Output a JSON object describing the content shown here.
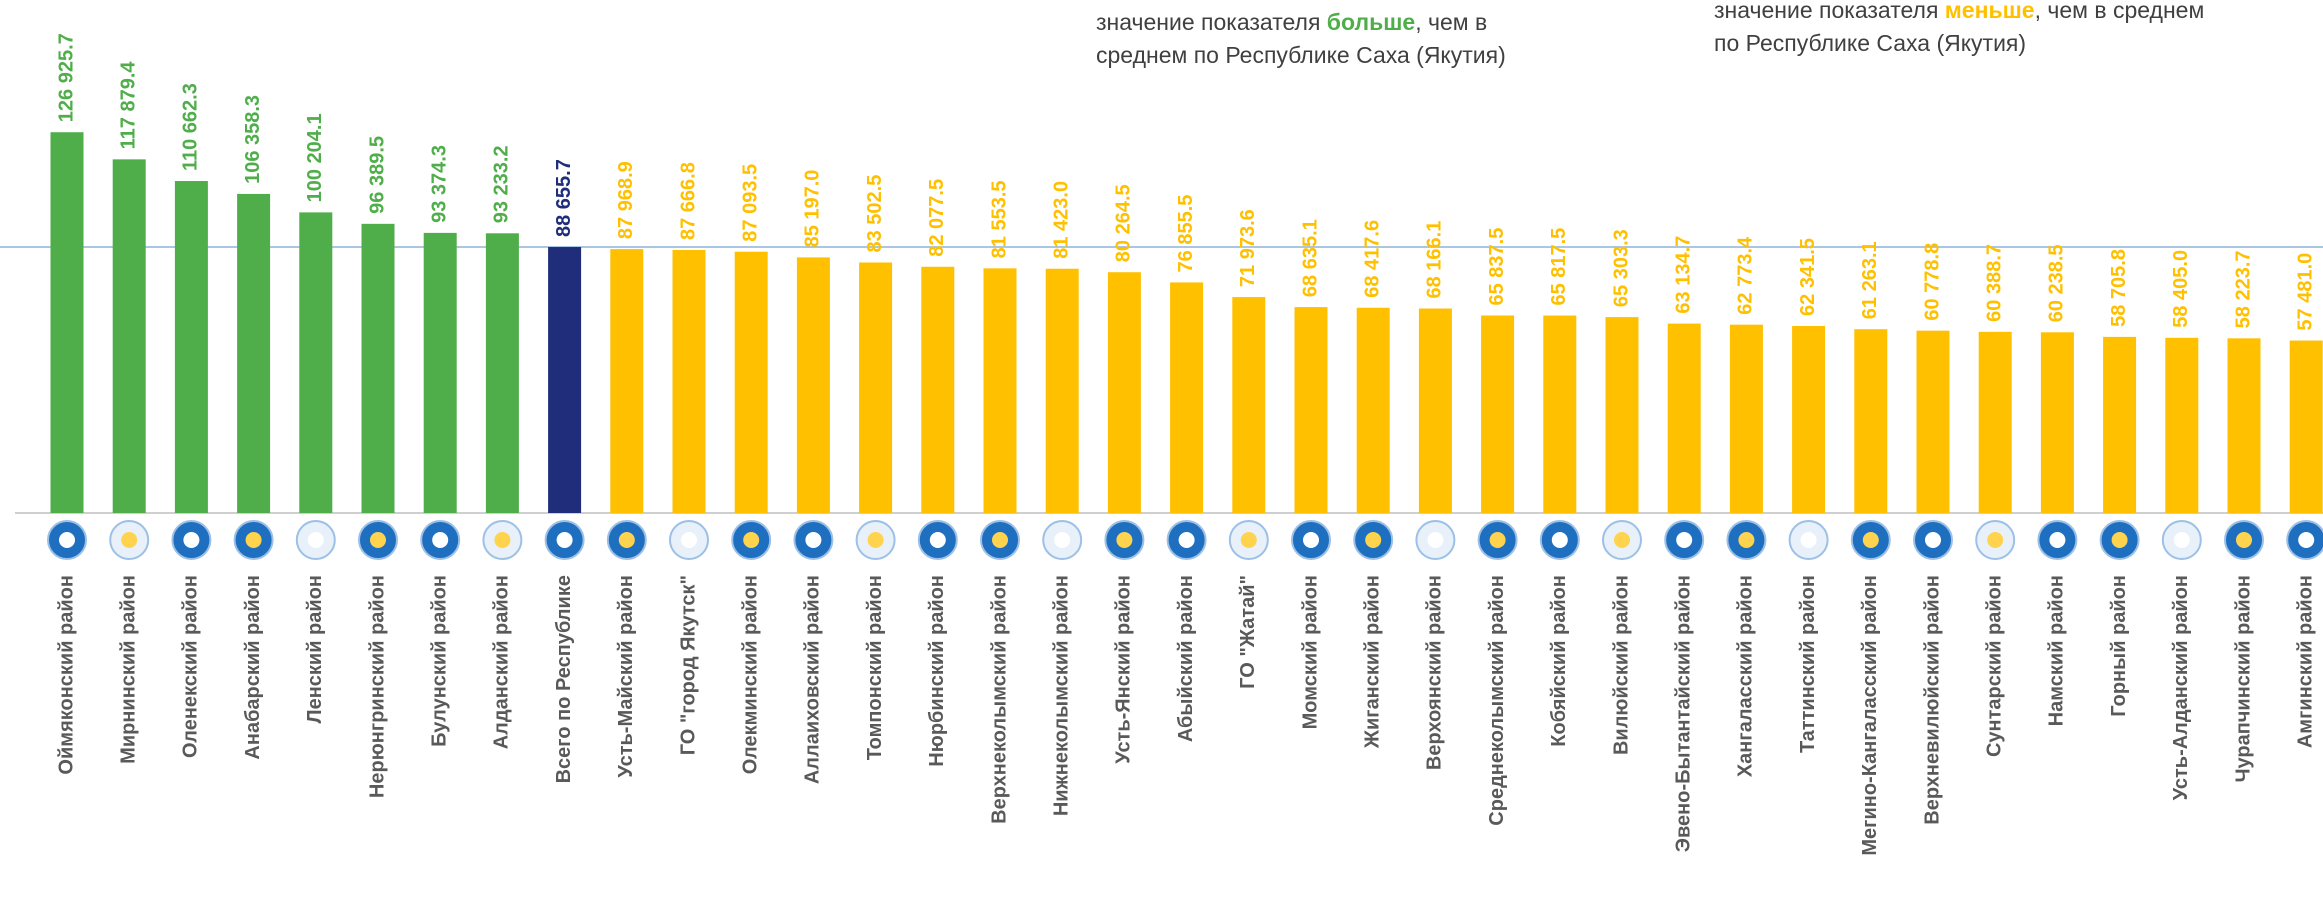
{
  "chart_data": {
    "type": "bar",
    "categories": [
      "Оймяконский район",
      "Мирнинский район",
      "Оленекский район",
      "Анабарский район",
      "Ленский район",
      "Нерюнгринский район",
      "Булунский район",
      "Алданский район",
      "Всего по Республике",
      "Усть-Майский район",
      "ГО \"город Якутск\"",
      "Олекминский район",
      "Аллаиховский район",
      "Томпонский район",
      "Нюрбинский район",
      "Верхнеколымский район",
      "Нижнеколымский район",
      "Усть-Янский район",
      "Абыйский район",
      "ГО \"Жатай\"",
      "Момский район",
      "Жиганский район",
      "Верхоянский район",
      "Среднеколымский район",
      "Кобяйский район",
      "Вилюйский район",
      "Эвено-Бытантайский район",
      "Хангаласский район",
      "Таттинский район",
      "Мегино-Кангаласский район",
      "Верхневилюйский район",
      "Сунтарский район",
      "Намский район",
      "Горный район",
      "Усть-Алданский район",
      "Чурапчинский район",
      "Амгинский район"
    ],
    "values": [
      126925.7,
      117879.4,
      110662.3,
      106358.3,
      100204.1,
      96389.5,
      93374.3,
      93233.2,
      88655.7,
      87968.9,
      87666.8,
      87093.5,
      85197.0,
      83502.5,
      82077.5,
      81553.5,
      81423.0,
      80264.5,
      76855.5,
      71973.6,
      68635.1,
      68417.6,
      68166.1,
      65837.5,
      65817.5,
      65303.3,
      63134.7,
      62773.4,
      62341.5,
      61263.1,
      60778.8,
      60388.7,
      60238.5,
      58705.8,
      58405.0,
      58223.7,
      57481.0
    ],
    "value_labels": [
      "126 925.7",
      "117 879.4",
      "110 662.3",
      "106 358.3",
      "100 204.1",
      "96 389.5",
      "93 374.3",
      "93 233.2",
      "88 655.7",
      "87 968.9",
      "87 666.8",
      "87 093.5",
      "85 197.0",
      "83 502.5",
      "82 077.5",
      "81 553.5",
      "81 423.0",
      "80 264.5",
      "76 855.5",
      "71 973.6",
      "68 635.1",
      "68 417.6",
      "68 166.1",
      "65 837.5",
      "65 817.5",
      "65 303.3",
      "63 134.7",
      "62 773.4",
      "62 341.5",
      "61 263.1",
      "60 778.8",
      "60 388.7",
      "60 238.5",
      "58 705.8",
      "58 405.0",
      "58 223.7",
      "57 481.0"
    ],
    "colors": [
      "#4fae4a",
      "#4fae4a",
      "#4fae4a",
      "#4fae4a",
      "#4fae4a",
      "#4fae4a",
      "#4fae4a",
      "#4fae4a",
      "#1f2d7a",
      "#ffc000",
      "#ffc000",
      "#ffc000",
      "#ffc000",
      "#ffc000",
      "#ffc000",
      "#ffc000",
      "#ffc000",
      "#ffc000",
      "#ffc000",
      "#ffc000",
      "#ffc000",
      "#ffc000",
      "#ffc000",
      "#ffc000",
      "#ffc000",
      "#ffc000",
      "#ffc000",
      "#ffc000",
      "#ffc000",
      "#ffc000",
      "#ffc000",
      "#ffc000",
      "#ffc000",
      "#ffc000",
      "#ffc000",
      "#ffc000",
      "#ffc000"
    ],
    "ylim": [
      0,
      130000
    ],
    "legend": [
      {
        "color": "#4fae4a",
        "lines": [
          [
            "значение показателя ",
            "больше",
            ", чем в"
          ],
          [
            "среднем по Республике Саха (Якутия)"
          ]
        ]
      },
      {
        "color": "#ffc000",
        "lines": [
          [
            "значение показателя ",
            "меньше",
            ", чем в среднем"
          ],
          [
            "по Республике Саха (Якутия)"
          ]
        ]
      }
    ]
  }
}
